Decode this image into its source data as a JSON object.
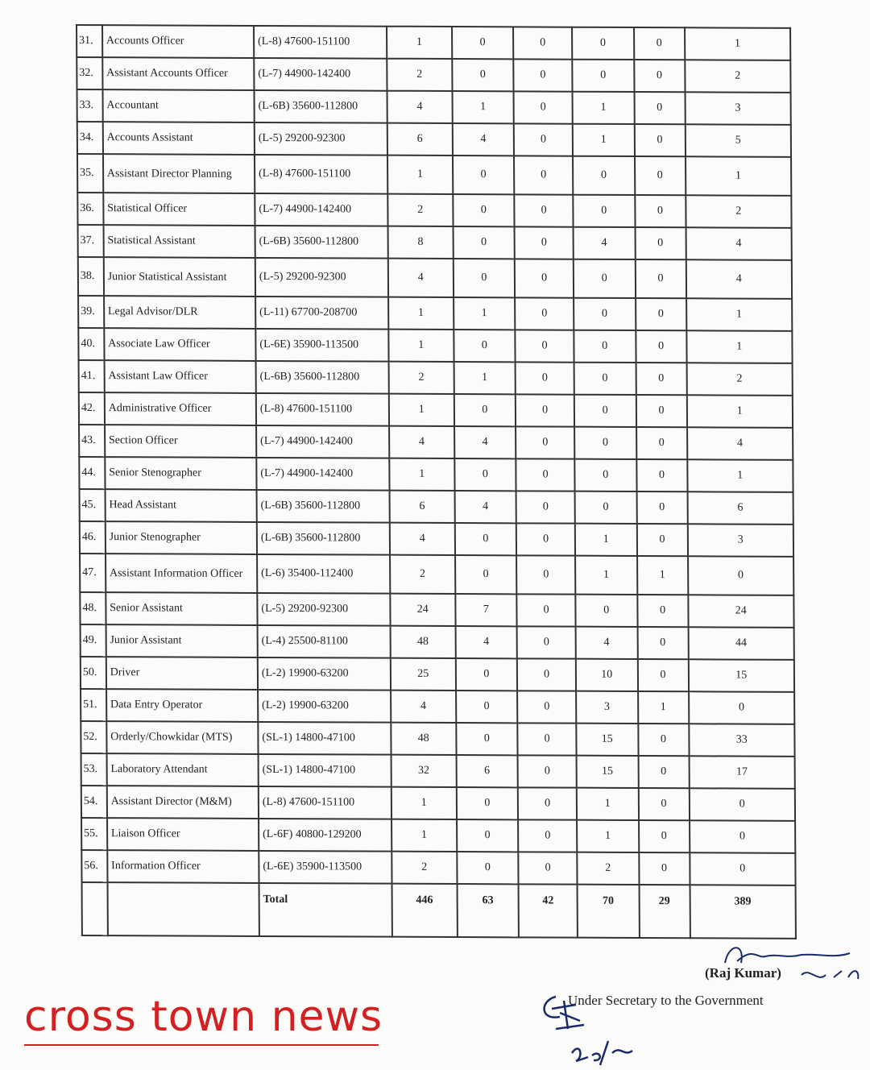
{
  "rows": [
    {
      "sno": "31.",
      "name": "Accounts Officer",
      "scale": "(L-8) 47600-151100",
      "v": [
        "1",
        "0",
        "0",
        "0",
        "0",
        "1"
      ]
    },
    {
      "sno": "32.",
      "name": "Assistant Accounts Officer",
      "scale": "(L-7) 44900-142400",
      "v": [
        "2",
        "0",
        "0",
        "0",
        "0",
        "2"
      ]
    },
    {
      "sno": "33.",
      "name": "Accountant",
      "scale": "(L-6B) 35600-112800",
      "v": [
        "4",
        "1",
        "0",
        "1",
        "0",
        "3"
      ]
    },
    {
      "sno": "34.",
      "name": "Accounts Assistant",
      "scale": "(L-5) 29200-92300",
      "v": [
        "6",
        "4",
        "0",
        "1",
        "0",
        "5"
      ]
    },
    {
      "sno": "35.",
      "name": "Assistant Director Planning",
      "scale": "(L-8) 47600-151100",
      "v": [
        "1",
        "0",
        "0",
        "0",
        "0",
        "1"
      ]
    },
    {
      "sno": "36.",
      "name": "Statistical Officer",
      "scale": "(L-7) 44900-142400",
      "v": [
        "2",
        "0",
        "0",
        "0",
        "0",
        "2"
      ]
    },
    {
      "sno": "37.",
      "name": "Statistical Assistant",
      "scale": "(L-6B) 35600-112800",
      "v": [
        "8",
        "0",
        "0",
        "4",
        "0",
        "4"
      ]
    },
    {
      "sno": "38.",
      "name": "Junior Statistical Assistant",
      "scale": "(L-5) 29200-92300",
      "v": [
        "4",
        "0",
        "0",
        "0",
        "0",
        "4"
      ]
    },
    {
      "sno": "39.",
      "name": "Legal Advisor/DLR",
      "scale": "(L-11) 67700-208700",
      "v": [
        "1",
        "1",
        "0",
        "0",
        "0",
        "1"
      ]
    },
    {
      "sno": "40.",
      "name": "Associate Law Officer",
      "scale": "(L-6E) 35900-113500",
      "v": [
        "1",
        "0",
        "0",
        "0",
        "0",
        "1"
      ]
    },
    {
      "sno": "41.",
      "name": "Assistant Law Officer",
      "scale": "(L-6B) 35600-112800",
      "v": [
        "2",
        "1",
        "0",
        "0",
        "0",
        "2"
      ]
    },
    {
      "sno": "42.",
      "name": "Administrative Officer",
      "scale": "(L-8) 47600-151100",
      "v": [
        "1",
        "0",
        "0",
        "0",
        "0",
        "1"
      ]
    },
    {
      "sno": "43.",
      "name": "Section Officer",
      "scale": "(L-7) 44900-142400",
      "v": [
        "4",
        "4",
        "0",
        "0",
        "0",
        "4"
      ]
    },
    {
      "sno": "44.",
      "name": "Senior Stenographer",
      "scale": "(L-7) 44900-142400",
      "v": [
        "1",
        "0",
        "0",
        "0",
        "0",
        "1"
      ]
    },
    {
      "sno": "45.",
      "name": "Head Assistant",
      "scale": "(L-6B) 35600-112800",
      "v": [
        "6",
        "4",
        "0",
        "0",
        "0",
        "6"
      ]
    },
    {
      "sno": "46.",
      "name": "Junior Stenographer",
      "scale": "(L-6B) 35600-112800",
      "v": [
        "4",
        "0",
        "0",
        "1",
        "0",
        "3"
      ]
    },
    {
      "sno": "47.",
      "name": "Assistant Information Officer",
      "scale": "(L-6) 35400-112400",
      "v": [
        "2",
        "0",
        "0",
        "1",
        "1",
        "0"
      ]
    },
    {
      "sno": "48.",
      "name": "Senior Assistant",
      "scale": "(L-5) 29200-92300",
      "v": [
        "24",
        "7",
        "0",
        "0",
        "0",
        "24"
      ]
    },
    {
      "sno": "49.",
      "name": "Junior Assistant",
      "scale": "(L-4) 25500-81100",
      "v": [
        "48",
        "4",
        "0",
        "4",
        "0",
        "44"
      ]
    },
    {
      "sno": "50.",
      "name": "Driver",
      "scale": "(L-2) 19900-63200",
      "v": [
        "25",
        "0",
        "0",
        "10",
        "0",
        "15"
      ]
    },
    {
      "sno": "51.",
      "name": "Data Entry Operator",
      "scale": "(L-2) 19900-63200",
      "v": [
        "4",
        "0",
        "0",
        "3",
        "1",
        "0"
      ]
    },
    {
      "sno": "52.",
      "name": "Orderly/Chowkidar (MTS)",
      "scale": "(SL-1) 14800-47100",
      "v": [
        "48",
        "0",
        "0",
        "15",
        "0",
        "33"
      ]
    },
    {
      "sno": "53.",
      "name": "Laboratory Attendant",
      "scale": "(SL-1) 14800-47100",
      "v": [
        "32",
        "6",
        "0",
        "15",
        "0",
        "17"
      ]
    },
    {
      "sno": "54.",
      "name": "Assistant Director (M&M)",
      "scale": "(L-8) 47600-151100",
      "v": [
        "1",
        "0",
        "0",
        "1",
        "0",
        "0"
      ]
    },
    {
      "sno": "55.",
      "name": "Liaison Officer",
      "scale": "(L-6F) 40800-129200",
      "v": [
        "1",
        "0",
        "0",
        "1",
        "0",
        "0"
      ]
    },
    {
      "sno": "56.",
      "name": "Information Officer",
      "scale": "(L-6E) 35900-113500",
      "v": [
        "2",
        "0",
        "0",
        "2",
        "0",
        "0"
      ]
    }
  ],
  "total": {
    "label": "Total",
    "v": [
      "446",
      "63",
      "42",
      "70",
      "29",
      "389"
    ]
  },
  "watermark": "cross town news",
  "signature": {
    "name": "(Raj Kumar)",
    "designation": "Under Secretary to the Government"
  }
}
